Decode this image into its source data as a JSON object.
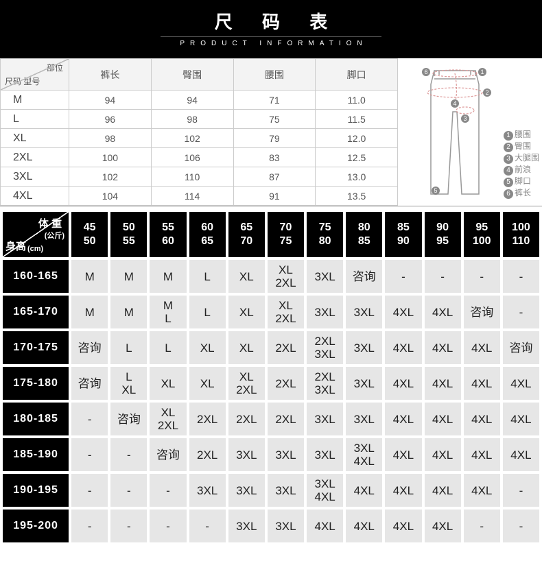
{
  "header": {
    "title": "尺 码 表",
    "subtitle": "PRODUCT INFORMATION"
  },
  "size_table": {
    "corner_top": "部位",
    "corner_bot": "尺码\n型号",
    "columns": [
      "裤长",
      "臀围",
      "腰围",
      "脚口"
    ],
    "rows": [
      {
        "k": "M",
        "v": [
          "94",
          "94",
          "71",
          "11.0"
        ]
      },
      {
        "k": "L",
        "v": [
          "96",
          "98",
          "75",
          "11.5"
        ]
      },
      {
        "k": "XL",
        "v": [
          "98",
          "102",
          "79",
          "12.0"
        ]
      },
      {
        "k": "2XL",
        "v": [
          "100",
          "106",
          "83",
          "12.5"
        ]
      },
      {
        "k": "3XL",
        "v": [
          "102",
          "110",
          "87",
          "13.0"
        ]
      },
      {
        "k": "4XL",
        "v": [
          "104",
          "114",
          "91",
          "13.5"
        ]
      }
    ]
  },
  "legend": [
    {
      "n": "1",
      "t": "腰围"
    },
    {
      "n": "2",
      "t": "臀围"
    },
    {
      "n": "3",
      "t": "大腿围"
    },
    {
      "n": "4",
      "t": "前浪"
    },
    {
      "n": "5",
      "t": "脚口"
    },
    {
      "n": "6",
      "t": "裤长"
    }
  ],
  "diagram_labels": {
    "1": "1",
    "2": "2",
    "3": "3",
    "4": "4",
    "5": "5",
    "6": "6"
  },
  "rec": {
    "corner_top": "体 重",
    "corner_top_sub": "(公斤)",
    "corner_bot": "身高",
    "corner_bot_sub": "(cm)",
    "weights": [
      [
        "45",
        "50"
      ],
      [
        "50",
        "55"
      ],
      [
        "55",
        "60"
      ],
      [
        "60",
        "65"
      ],
      [
        "65",
        "70"
      ],
      [
        "70",
        "75"
      ],
      [
        "75",
        "80"
      ],
      [
        "80",
        "85"
      ],
      [
        "85",
        "90"
      ],
      [
        "90",
        "95"
      ],
      [
        "95",
        "100"
      ],
      [
        "100",
        "110"
      ]
    ],
    "heights": [
      "160-165",
      "165-170",
      "170-175",
      "175-180",
      "180-185",
      "185-190",
      "190-195",
      "195-200"
    ],
    "grid": [
      [
        "M",
        "M",
        "M",
        "L",
        "XL",
        "XL\n2XL",
        "3XL",
        "咨询",
        "-",
        "-",
        "-",
        "-"
      ],
      [
        "M",
        "M",
        "M\nL",
        "L",
        "XL",
        "XL\n2XL",
        "3XL",
        "3XL",
        "4XL",
        "4XL",
        "咨询",
        "-"
      ],
      [
        "咨询",
        "L",
        "L",
        "XL",
        "XL",
        "2XL",
        "2XL\n3XL",
        "3XL",
        "4XL",
        "4XL",
        "4XL",
        "咨询"
      ],
      [
        "咨询",
        "L\nXL",
        "XL",
        "XL",
        "XL\n2XL",
        "2XL",
        "2XL\n3XL",
        "3XL",
        "4XL",
        "4XL",
        "4XL",
        "4XL"
      ],
      [
        "-",
        "咨询",
        "XL\n2XL",
        "2XL",
        "2XL",
        "2XL",
        "3XL",
        "3XL",
        "4XL",
        "4XL",
        "4XL",
        "4XL"
      ],
      [
        "-",
        "-",
        "咨询",
        "2XL",
        "3XL",
        "3XL",
        "3XL",
        "3XL\n4XL",
        "4XL",
        "4XL",
        "4XL",
        "4XL"
      ],
      [
        "-",
        "-",
        "-",
        "3XL",
        "3XL",
        "3XL",
        "3XL\n4XL",
        "4XL",
        "4XL",
        "4XL",
        "4XL",
        "-"
      ],
      [
        "-",
        "-",
        "-",
        "-",
        "3XL",
        "3XL",
        "4XL",
        "4XL",
        "4XL",
        "4XL",
        "-",
        "-"
      ]
    ]
  }
}
